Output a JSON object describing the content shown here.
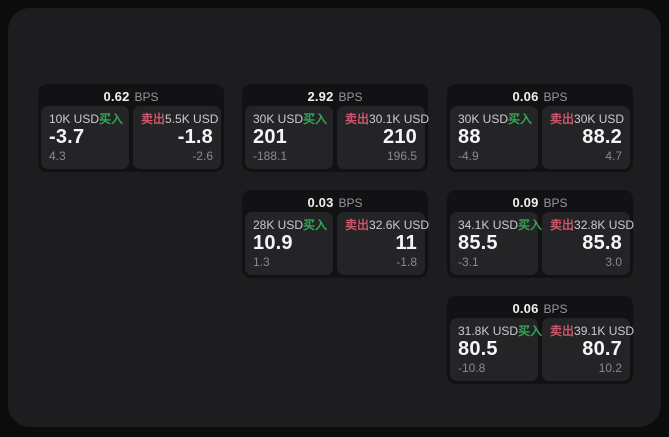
{
  "labels": {
    "bps_unit": "BPS",
    "buy": "买入",
    "sell": "卖出"
  },
  "colors": {
    "buy_accent": "#35a554",
    "sell_accent": "#c9566b",
    "surface": "#1d1d1f",
    "card": "#121214",
    "pane": "#242427"
  },
  "cards": [
    {
      "bps": "0.62",
      "buy": {
        "amount": "10K USD",
        "value": "-3.7",
        "delta": "4.3"
      },
      "sell": {
        "amount": "5.5K USD",
        "value": "-1.8",
        "delta": "-2.6"
      }
    },
    {
      "bps": "2.92",
      "buy": {
        "amount": "30K USD",
        "value": "201",
        "delta": "-188.1"
      },
      "sell": {
        "amount": "30.1K USD",
        "value": "210",
        "delta": "196.5"
      }
    },
    {
      "bps": "0.06",
      "buy": {
        "amount": "30K USD",
        "value": "88",
        "delta": "-4.9"
      },
      "sell": {
        "amount": "30K USD",
        "value": "88.2",
        "delta": "4.7"
      }
    },
    {
      "bps": "0.03",
      "buy": {
        "amount": "28K USD",
        "value": "10.9",
        "delta": "1.3"
      },
      "sell": {
        "amount": "32.6K USD",
        "value": "11",
        "delta": "-1.8"
      }
    },
    {
      "bps": "0.09",
      "buy": {
        "amount": "34.1K USD",
        "value": "85.5",
        "delta": "-3.1"
      },
      "sell": {
        "amount": "32.8K USD",
        "value": "85.8",
        "delta": "3.0"
      }
    },
    {
      "bps": "0.06",
      "buy": {
        "amount": "31.8K USD",
        "value": "80.5",
        "delta": "-10.8"
      },
      "sell": {
        "amount": "39.1K USD",
        "value": "80.7",
        "delta": "10.2"
      }
    }
  ]
}
